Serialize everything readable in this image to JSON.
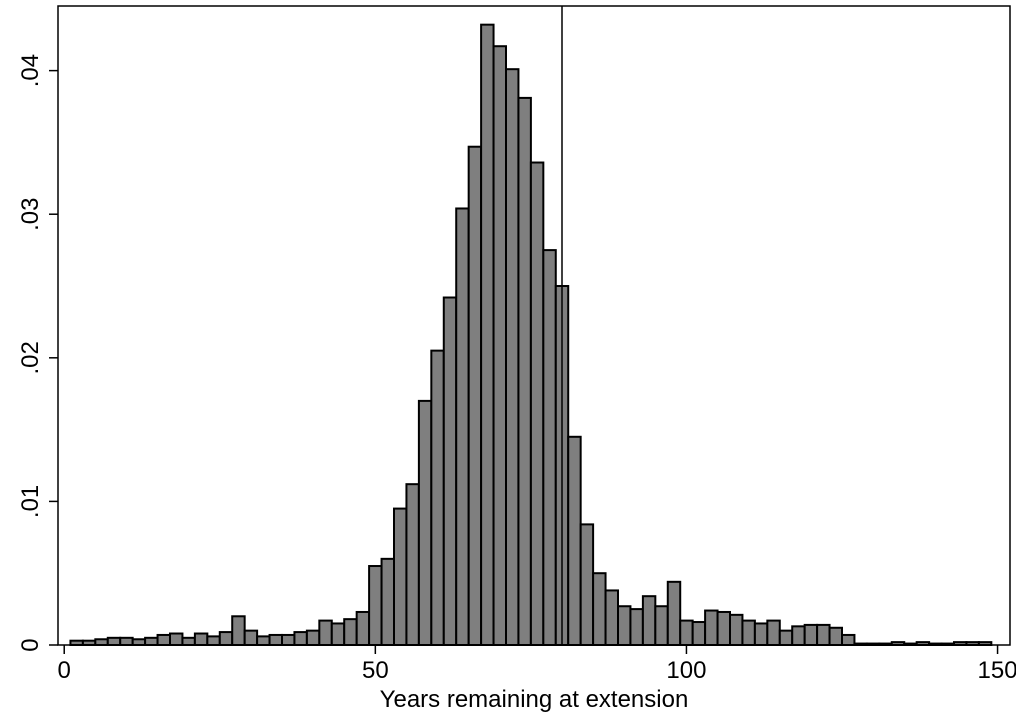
{
  "chart_data": {
    "type": "bar",
    "title": "",
    "xlabel": "Years remaining at extension",
    "ylabel": "",
    "xlim": [
      -1,
      152
    ],
    "ylim": [
      0,
      0.0445
    ],
    "x_ticks": [
      {
        "value": 0,
        "label": "0"
      },
      {
        "value": 50,
        "label": "50"
      },
      {
        "value": 100,
        "label": "100"
      },
      {
        "value": 150,
        "label": "150"
      }
    ],
    "y_ticks": [
      {
        "value": 0,
        "label": "0"
      },
      {
        "value": 0.01,
        "label": ".01"
      },
      {
        "value": 0.02,
        "label": ".02"
      },
      {
        "value": 0.03,
        "label": ".03"
      },
      {
        "value": 0.04,
        "label": ".04"
      }
    ],
    "bin_start": 1,
    "bin_width": 2,
    "values": [
      0.0003,
      0.0003,
      0.0004,
      0.0005,
      0.0005,
      0.0004,
      0.0005,
      0.0007,
      0.0008,
      0.0005,
      0.0008,
      0.0006,
      0.0009,
      0.002,
      0.001,
      0.0006,
      0.0007,
      0.0007,
      0.0009,
      0.001,
      0.0017,
      0.0015,
      0.0018,
      0.0023,
      0.0055,
      0.006,
      0.0095,
      0.0112,
      0.017,
      0.0205,
      0.0242,
      0.0304,
      0.0347,
      0.0432,
      0.0417,
      0.0401,
      0.0381,
      0.0336,
      0.0275,
      0.025,
      0.0145,
      0.0084,
      0.005,
      0.0038,
      0.0027,
      0.0025,
      0.0034,
      0.0027,
      0.0044,
      0.0017,
      0.0016,
      0.0024,
      0.0023,
      0.0021,
      0.0017,
      0.0015,
      0.0017,
      0.001,
      0.0013,
      0.0014,
      0.0014,
      0.0012,
      0.0007,
      0.0001,
      0.0001,
      0.0001,
      0.0002,
      0.0001,
      0.0002,
      0.0001,
      0.0001,
      0.0002,
      0.0002,
      0.0002
    ],
    "reference_line_x": 80,
    "bar_color": "#7f7f7f",
    "grid": false,
    "legend": "none"
  }
}
